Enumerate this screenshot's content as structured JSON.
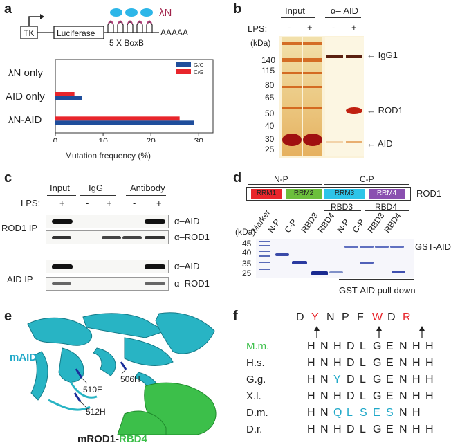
{
  "panels": {
    "a": {
      "label": "a",
      "construct": {
        "tk": "TK",
        "luciferase": "Luciferase",
        "boxb": "5 X BoxB",
        "polyA": "AAAAA",
        "lambdaN": "λN"
      },
      "chart_data": {
        "type": "bar",
        "orientation": "horizontal",
        "categories": [
          "λN only",
          "AID only",
          "λN-AID"
        ],
        "series": [
          {
            "name": "G/C",
            "color": "#1f4e9c",
            "values": [
              0,
              5.5,
              29
            ]
          },
          {
            "name": "C/G",
            "color": "#e8252b",
            "values": [
              0,
              4,
              26
            ]
          }
        ],
        "xlabel": "Mutation frequency (%)",
        "xticks": [
          "0",
          "10",
          "20",
          "30"
        ],
        "xlim": [
          0,
          33
        ],
        "legend_position": "top-right"
      }
    },
    "b": {
      "label": "b",
      "input": "Input",
      "anti_aid": "α– AID",
      "lps": "LPS:",
      "lps_signs": [
        "-",
        "+",
        "-",
        "+"
      ],
      "kda": "(kDa)",
      "markers": [
        "140",
        "115",
        "80",
        "65",
        "50",
        "40",
        "30",
        "25"
      ],
      "bands": [
        "IgG1",
        "ROD1",
        "AID"
      ]
    },
    "c": {
      "label": "c",
      "cols": [
        "Input",
        "IgG",
        "Antibody"
      ],
      "lps": "LPS:",
      "lps_signs": [
        "+",
        "-",
        "+",
        "-",
        "+"
      ],
      "rod1_ip": "ROD1 IP",
      "aid_ip": "AID IP",
      "blots": [
        "α–AID",
        "α–ROD1",
        "α–AID",
        "α–ROD1"
      ]
    },
    "d": {
      "label": "d",
      "np": "N-P",
      "cp": "C-P",
      "rrm": [
        "RRM1",
        "RRM2",
        "RRM3",
        "RRM4"
      ],
      "rod1": "ROD1",
      "rbd3": "RBD3",
      "rbd4": "RBD4",
      "kda": "(kDa)",
      "markers": [
        "45",
        "40",
        "35",
        "25"
      ],
      "lanes": [
        "Marker",
        "N-P",
        "C-P",
        "RBD3",
        "RBD4",
        "N-P",
        "C-P",
        "RBD3",
        "RBD4"
      ],
      "gst_aid": "GST-AID",
      "pulldown": "GST-AID pull down"
    },
    "e": {
      "label": "e",
      "maid": "mAID",
      "mrod1": "mROD1-",
      "rbd4": "RBD4",
      "res": [
        "510E",
        "506H",
        "512H"
      ]
    },
    "f": {
      "label": "f",
      "consensus": [
        "D",
        "Y",
        "N",
        "P",
        "F",
        "W",
        "D",
        "R"
      ],
      "species": [
        {
          "name": "M.m.",
          "seq": [
            "H",
            "N",
            "H",
            "D",
            "L",
            "G",
            "E",
            "N",
            "H",
            "H"
          ]
        },
        {
          "name": "H.s.",
          "seq": [
            "H",
            "N",
            "H",
            "D",
            "L",
            "G",
            "E",
            "N",
            "H",
            "H"
          ]
        },
        {
          "name": "G.g.",
          "seq": [
            "H",
            "N",
            "Y",
            "D",
            "L",
            "G",
            "E",
            "N",
            "H",
            "H"
          ]
        },
        {
          "name": "X.l.",
          "seq": [
            "H",
            "N",
            "H",
            "D",
            "L",
            "G",
            "E",
            "N",
            "H",
            "H"
          ]
        },
        {
          "name": "D.m.",
          "seq": [
            "H",
            "N",
            "Q",
            "L",
            "S",
            "E",
            "S",
            "N",
            "H"
          ]
        },
        {
          "name": "D.r.",
          "seq": [
            "H",
            "N",
            "H",
            "D",
            "L",
            "G",
            "E",
            "N",
            "H",
            "H"
          ]
        }
      ]
    }
  }
}
